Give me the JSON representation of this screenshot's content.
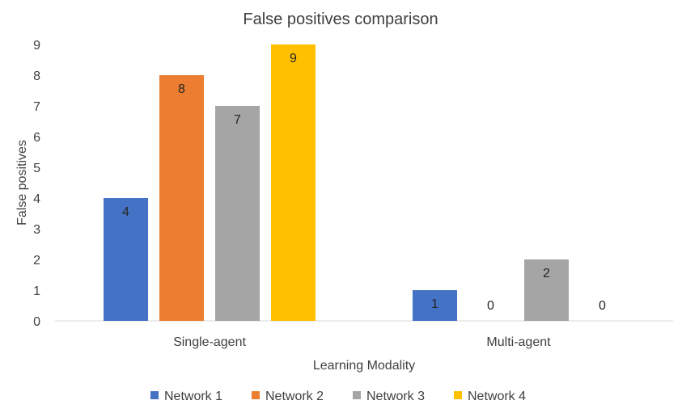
{
  "chart_data": {
    "type": "bar",
    "title": "False positives comparison",
    "xlabel": "Learning Modality",
    "ylabel": "False positives",
    "categories": [
      "Single-agent",
      "Multi-agent"
    ],
    "series": [
      {
        "name": "Network 1",
        "color": "#4472C4",
        "values": [
          4,
          1
        ]
      },
      {
        "name": "Network 2",
        "color": "#ED7D31",
        "values": [
          8,
          0
        ]
      },
      {
        "name": "Network 3",
        "color": "#A5A5A5",
        "values": [
          7,
          2
        ]
      },
      {
        "name": "Network 4",
        "color": "#FFC000",
        "values": [
          9,
          0
        ]
      }
    ],
    "ylim": [
      0,
      9
    ],
    "yticks": [
      "0",
      "1",
      "2",
      "3",
      "4",
      "5",
      "6",
      "7",
      "8",
      "9"
    ],
    "grid": false,
    "data_labels": true,
    "legend_position": "bottom"
  }
}
